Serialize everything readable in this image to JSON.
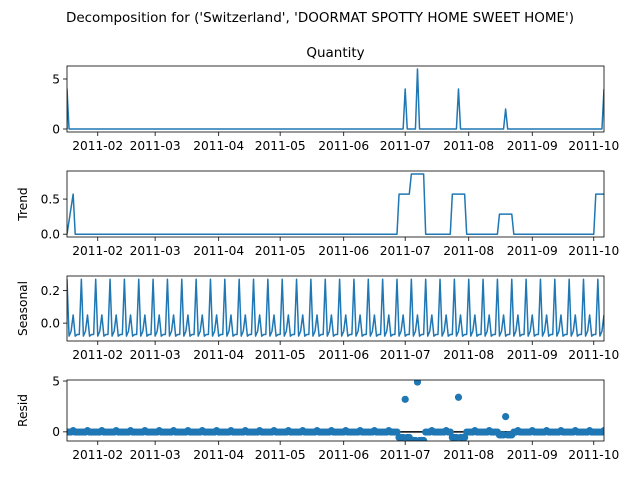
{
  "figure": {
    "title": "Decomposition for ('Switzerland', 'DOORMAT SPOTTY HOME SWEET HOME')"
  },
  "colors": {
    "series": "#1f77b4",
    "zero_line": "#000000"
  },
  "chart_data": [
    {
      "type": "line",
      "name": "observed",
      "title": "Quantity",
      "ylabel": "",
      "x_range": [
        "2011-01-17",
        "2011-10-06"
      ],
      "ylim": [
        -0.3,
        6.3
      ],
      "yticks": [
        0,
        5
      ],
      "xticks": [
        "2011-02",
        "2011-03",
        "2011-04",
        "2011-05",
        "2011-06",
        "2011-07",
        "2011-08",
        "2011-09",
        "2011-10"
      ],
      "points": [
        [
          "2011-01-17",
          4
        ],
        [
          "2011-01-18",
          0
        ],
        [
          "2011-06-30",
          0
        ],
        [
          "2011-07-01",
          4
        ],
        [
          "2011-07-02",
          0
        ],
        [
          "2011-07-06",
          0
        ],
        [
          "2011-07-07",
          6
        ],
        [
          "2011-07-08",
          0
        ],
        [
          "2011-07-26",
          0
        ],
        [
          "2011-07-27",
          4
        ],
        [
          "2011-07-28",
          0
        ],
        [
          "2011-08-18",
          0
        ],
        [
          "2011-08-19",
          2
        ],
        [
          "2011-08-20",
          0
        ],
        [
          "2011-10-05",
          0
        ],
        [
          "2011-10-06",
          4
        ]
      ]
    },
    {
      "type": "line",
      "name": "trend",
      "title": "",
      "ylabel": "Trend",
      "x_range": [
        "2011-01-17",
        "2011-10-06"
      ],
      "ylim": [
        -0.04,
        0.9
      ],
      "yticks": [
        0.0,
        0.5
      ],
      "xticks": [
        "2011-02",
        "2011-03",
        "2011-04",
        "2011-05",
        "2011-06",
        "2011-07",
        "2011-08",
        "2011-09",
        "2011-10"
      ],
      "points": [
        [
          "2011-01-20",
          0.571
        ],
        [
          "2011-01-21",
          0
        ],
        [
          "2011-06-27",
          0
        ],
        [
          "2011-06-28",
          0.571
        ],
        [
          "2011-07-03",
          0.571
        ],
        [
          "2011-07-04",
          0.857
        ],
        [
          "2011-07-10",
          0.857
        ],
        [
          "2011-07-11",
          0
        ],
        [
          "2011-07-23",
          0
        ],
        [
          "2011-07-24",
          0.571
        ],
        [
          "2011-07-30",
          0.571
        ],
        [
          "2011-07-31",
          0
        ],
        [
          "2011-08-15",
          0
        ],
        [
          "2011-08-16",
          0.286
        ],
        [
          "2011-08-22",
          0.286
        ],
        [
          "2011-08-23",
          0
        ],
        [
          "2011-10-01",
          0
        ],
        [
          "2011-10-02",
          0.571
        ]
      ]
    },
    {
      "type": "line",
      "name": "seasonal",
      "title": "",
      "ylabel": "Seasonal",
      "x_range": [
        "2011-01-17",
        "2011-10-06"
      ],
      "ylim": [
        -0.11,
        0.29
      ],
      "yticks": [
        0.0,
        0.2
      ],
      "xticks": [
        "2011-02",
        "2011-03",
        "2011-04",
        "2011-05",
        "2011-06",
        "2011-07",
        "2011-08",
        "2011-09",
        "2011-10"
      ],
      "period_start": "2011-01-17",
      "period_pattern": [
        0.27,
        -0.08,
        -0.05,
        0.05,
        -0.08,
        -0.07,
        -0.07
      ]
    },
    {
      "type": "scatter",
      "name": "resid",
      "title": "",
      "ylabel": "Resid",
      "x_range": [
        "2011-01-17",
        "2011-10-06"
      ],
      "ylim": [
        -0.9,
        5.1
      ],
      "yticks": [
        0,
        5
      ],
      "xticks": [
        "2011-02",
        "2011-03",
        "2011-04",
        "2011-05",
        "2011-06",
        "2011-07",
        "2011-08",
        "2011-09",
        "2011-10"
      ],
      "zero_line": true,
      "outliers": [
        [
          "2011-07-01",
          3.2
        ],
        [
          "2011-07-07",
          4.9
        ],
        [
          "2011-07-27",
          3.4
        ],
        [
          "2011-08-19",
          1.5
        ]
      ],
      "dips": [
        [
          "2011-06-28",
          -0.55
        ],
        [
          "2011-06-29",
          -0.55
        ],
        [
          "2011-06-30",
          -0.55
        ],
        [
          "2011-07-02",
          -0.55
        ],
        [
          "2011-07-03",
          -0.55
        ],
        [
          "2011-07-04",
          -0.85
        ],
        [
          "2011-07-05",
          -0.85
        ],
        [
          "2011-07-06",
          -0.85
        ],
        [
          "2011-07-08",
          -0.85
        ],
        [
          "2011-07-09",
          -0.85
        ],
        [
          "2011-07-10",
          -0.85
        ],
        [
          "2011-07-24",
          -0.55
        ],
        [
          "2011-07-25",
          -0.55
        ],
        [
          "2011-07-26",
          -0.55
        ],
        [
          "2011-07-28",
          -0.55
        ],
        [
          "2011-07-29",
          -0.55
        ],
        [
          "2011-07-30",
          -0.55
        ],
        [
          "2011-08-16",
          -0.3
        ],
        [
          "2011-08-17",
          -0.3
        ],
        [
          "2011-08-18",
          -0.3
        ],
        [
          "2011-08-20",
          -0.3
        ],
        [
          "2011-08-21",
          -0.3
        ],
        [
          "2011-08-22",
          -0.3
        ]
      ]
    }
  ]
}
